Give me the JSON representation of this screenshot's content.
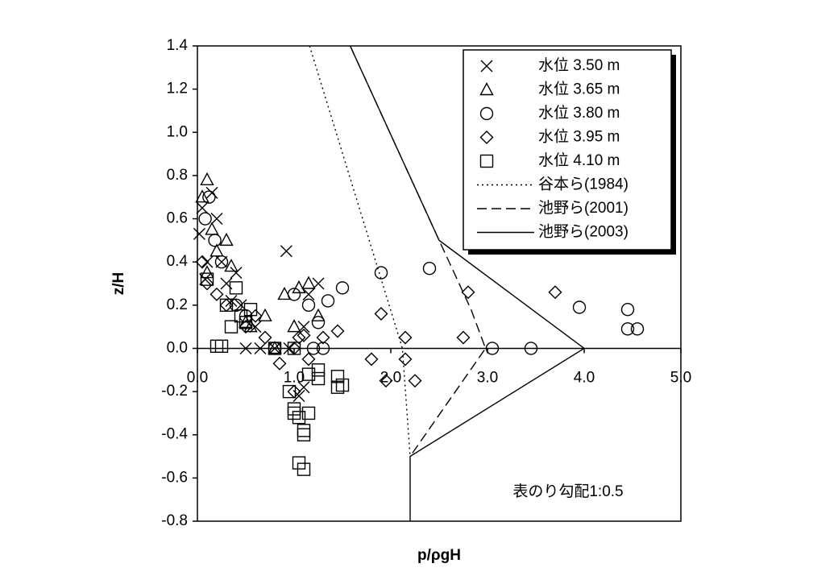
{
  "chart_data": {
    "type": "scatter",
    "x_label": "p/ρgH",
    "y_label": "z/H",
    "annotation": "表のり勾配1:0.5",
    "xlim": [
      0,
      5
    ],
    "ylim": [
      -0.8,
      1.4
    ],
    "xticks": [
      {
        "value": 0,
        "label": "0.0"
      },
      {
        "value": 1,
        "label": "1.0"
      },
      {
        "value": 2,
        "label": "2.0"
      },
      {
        "value": 3,
        "label": "3.0"
      },
      {
        "value": 4,
        "label": "4.0"
      },
      {
        "value": 5,
        "label": "5.0"
      }
    ],
    "yticks": [
      -0.8,
      -0.6,
      -0.4,
      -0.2,
      {
        "value": 0,
        "label": "0.0"
      },
      0.2,
      0.4,
      0.6,
      0.8,
      {
        "value": 1,
        "label": "1.0"
      },
      1.2,
      1.4
    ],
    "legend": "upper right",
    "series": [
      {
        "name": "水位 3.50 m",
        "marker": "x",
        "color": "#000000",
        "x": [
          0.02,
          0.05,
          0.1,
          0.15,
          0.2,
          0.25,
          0.3,
          0.4,
          0.45,
          0.5,
          0.6,
          0.65,
          0.8,
          0.95,
          0.92,
          1.1,
          1.15,
          1.25,
          1.1,
          1.05,
          0.35,
          0.08
        ],
        "y": [
          0.53,
          0.65,
          0.4,
          0.72,
          0.6,
          0.4,
          0.3,
          0.35,
          0.2,
          0.0,
          0.1,
          0.0,
          0.0,
          0.0,
          0.45,
          0.1,
          0.25,
          0.3,
          -0.18,
          -0.22,
          0.22,
          0.32
        ]
      },
      {
        "name": "水位 3.65 m",
        "marker": "triangle",
        "color": "#000000",
        "x": [
          0.1,
          0.05,
          0.15,
          0.3,
          0.35,
          0.5,
          0.55,
          0.7,
          0.8,
          0.9,
          1.05,
          1.15,
          1.0,
          1.25,
          0.2,
          0.1
        ],
        "y": [
          0.78,
          0.7,
          0.55,
          0.5,
          0.38,
          0.12,
          0.1,
          0.15,
          0.0,
          0.25,
          0.28,
          0.3,
          0.1,
          0.15,
          0.45,
          0.35
        ]
      },
      {
        "name": "水位 3.80 m",
        "marker": "circle",
        "color": "#000000",
        "x": [
          0.12,
          0.08,
          0.18,
          0.25,
          0.4,
          0.5,
          0.8,
          1.0,
          1.15,
          1.25,
          1.3,
          1.35,
          1.5,
          1.2,
          1.9,
          2.4,
          3.05,
          3.45,
          3.95,
          4.45,
          4.45,
          4.55
        ],
        "y": [
          0.7,
          0.6,
          0.5,
          0.4,
          0.2,
          0.15,
          0.0,
          0.25,
          0.2,
          0.12,
          0.0,
          0.22,
          0.28,
          0.0,
          0.35,
          0.37,
          0.0,
          0.0,
          0.19,
          0.18,
          0.09,
          0.09
        ]
      },
      {
        "name": "水位 3.95 m",
        "marker": "diamond",
        "color": "#000000",
        "x": [
          0.05,
          0.1,
          0.2,
          0.3,
          0.5,
          0.6,
          0.7,
          0.85,
          1.0,
          1.05,
          1.15,
          1.0,
          1.3,
          1.1,
          1.45,
          1.8,
          1.9,
          1.95,
          2.15,
          2.15,
          2.25,
          2.75,
          2.8,
          3.7
        ],
        "y": [
          0.4,
          0.3,
          0.25,
          0.2,
          0.1,
          0.15,
          0.05,
          -0.07,
          0.0,
          0.05,
          -0.05,
          -0.2,
          0.05,
          0.06,
          0.08,
          -0.05,
          0.16,
          -0.15,
          0.05,
          -0.05,
          -0.15,
          0.05,
          0.26,
          0.26
        ]
      },
      {
        "name": "水位 4.10 m",
        "marker": "square",
        "color": "#000000",
        "x": [
          0.2,
          0.25,
          0.3,
          0.35,
          0.4,
          0.45,
          0.5,
          0.55,
          0.8,
          1.0,
          0.95,
          1.0,
          1.05,
          1.1,
          1.1,
          1.15,
          1.0,
          1.05,
          1.1,
          1.15,
          1.25,
          1.25,
          1.45,
          1.5,
          1.45,
          0.1
        ],
        "y": [
          0.01,
          0.01,
          0.2,
          0.1,
          0.28,
          0.15,
          0.12,
          0.18,
          0.0,
          0.0,
          -0.2,
          -0.28,
          -0.32,
          -0.38,
          -0.4,
          -0.3,
          -0.3,
          -0.53,
          -0.56,
          -0.12,
          -0.14,
          -0.1,
          -0.13,
          -0.17,
          -0.18,
          0.32
        ]
      },
      {
        "name": "谷本ら(1984)",
        "line": "dotted",
        "color": "#000000",
        "x": [
          1.16,
          2.12,
          2.2
        ],
        "y": [
          1.4,
          0.0,
          -0.5
        ]
      },
      {
        "name": "池野ら(2001)",
        "line": "dashed",
        "color": "#000000",
        "x": [
          1.58,
          2.5,
          2.83,
          2.98,
          2.2
        ],
        "y": [
          1.4,
          0.5,
          0.18,
          0.0,
          -0.5
        ]
      },
      {
        "name": "池野ら(2003)",
        "line": "solid",
        "color": "#000000",
        "x": [
          1.58,
          2.5,
          4.0,
          2.2,
          2.2
        ],
        "y": [
          1.4,
          0.5,
          0.0,
          -0.5,
          -0.8
        ]
      }
    ]
  }
}
